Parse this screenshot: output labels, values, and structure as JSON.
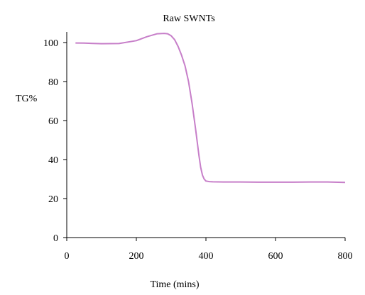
{
  "chart_data": {
    "type": "line",
    "title": "Raw SWNTs",
    "xlabel": "Time (mins)",
    "ylabel": "TG%",
    "xlim": [
      0,
      800
    ],
    "ylim": [
      0,
      105
    ],
    "x_ticks": [
      0,
      200,
      400,
      600,
      800
    ],
    "y_ticks": [
      0,
      20,
      40,
      60,
      80,
      100
    ],
    "grid": false,
    "legend": "none",
    "series": [
      {
        "color": "#c77fc9",
        "x": [
          25,
          50,
          100,
          150,
          200,
          230,
          260,
          280,
          290,
          300,
          310,
          320,
          330,
          340,
          350,
          360,
          370,
          380,
          385,
          390,
          395,
          400,
          410,
          420,
          450,
          500,
          550,
          600,
          650,
          700,
          750,
          800
        ],
        "y": [
          99.8,
          99.7,
          99.4,
          99.5,
          101,
          103,
          104.5,
          104.7,
          104.5,
          103.5,
          101.5,
          98,
          93.5,
          88,
          80,
          69,
          56,
          42,
          36,
          32,
          30,
          29,
          28.7,
          28.6,
          28.5,
          28.5,
          28.4,
          28.4,
          28.4,
          28.5,
          28.5,
          28.3
        ]
      }
    ]
  }
}
